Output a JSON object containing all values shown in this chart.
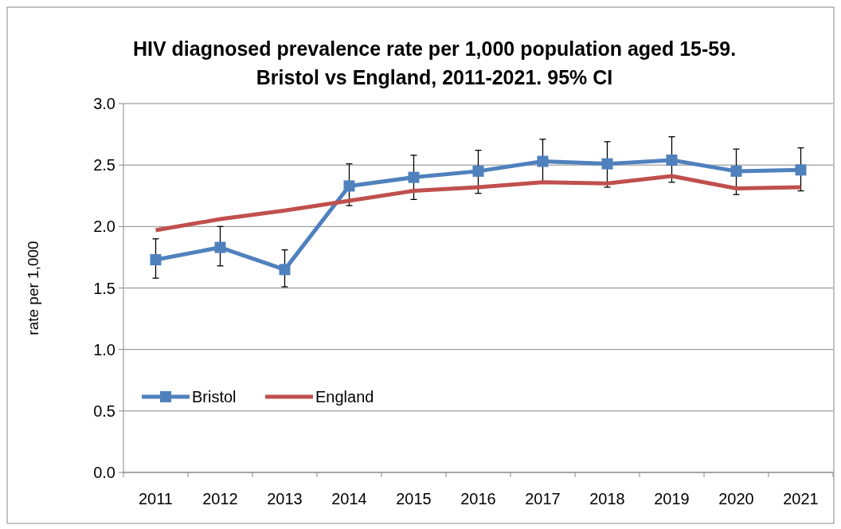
{
  "chart_data": {
    "type": "line",
    "title": "HIV diagnosed prevalence rate per 1,000 population aged 15-59. Bristol vs England, 2011-2021. 95% CI",
    "ylabel": "rate per 1,000",
    "categories": [
      "2011",
      "2012",
      "2013",
      "2014",
      "2015",
      "2016",
      "2017",
      "2018",
      "2019",
      "2020",
      "2021"
    ],
    "ylim": [
      0,
      3
    ],
    "yticks": [
      {
        "value": 0,
        "label": "0.0"
      },
      {
        "value": 0.5,
        "label": "0.5"
      },
      {
        "value": 1,
        "label": "1.0"
      },
      {
        "value": 1.5,
        "label": "1.5"
      },
      {
        "value": 2,
        "label": "2.0"
      },
      {
        "value": 2.5,
        "label": "2.5"
      },
      {
        "value": 3,
        "label": "3.0"
      }
    ],
    "grid": "y",
    "legend": "left",
    "series": [
      {
        "name": "Bristol",
        "color": "#4f81bd",
        "marker": "square",
        "values": [
          1.73,
          1.83,
          1.65,
          2.33,
          2.4,
          2.45,
          2.53,
          2.51,
          2.54,
          2.45,
          2.46
        ],
        "errors": [
          [
            1.58,
            1.9
          ],
          [
            1.68,
            2.0
          ],
          [
            1.51,
            1.81
          ],
          [
            2.17,
            2.51
          ],
          [
            2.22,
            2.58
          ],
          [
            2.27,
            2.62
          ],
          [
            2.35,
            2.71
          ],
          [
            2.32,
            2.69
          ],
          [
            2.36,
            2.73
          ],
          [
            2.26,
            2.63
          ],
          [
            2.29,
            2.64
          ]
        ]
      },
      {
        "name": "England",
        "color": "#c0504d",
        "marker": "none",
        "values": [
          1.97,
          2.06,
          2.13,
          2.21,
          2.29,
          2.32,
          2.36,
          2.35,
          2.41,
          2.31,
          2.32
        ]
      }
    ]
  }
}
